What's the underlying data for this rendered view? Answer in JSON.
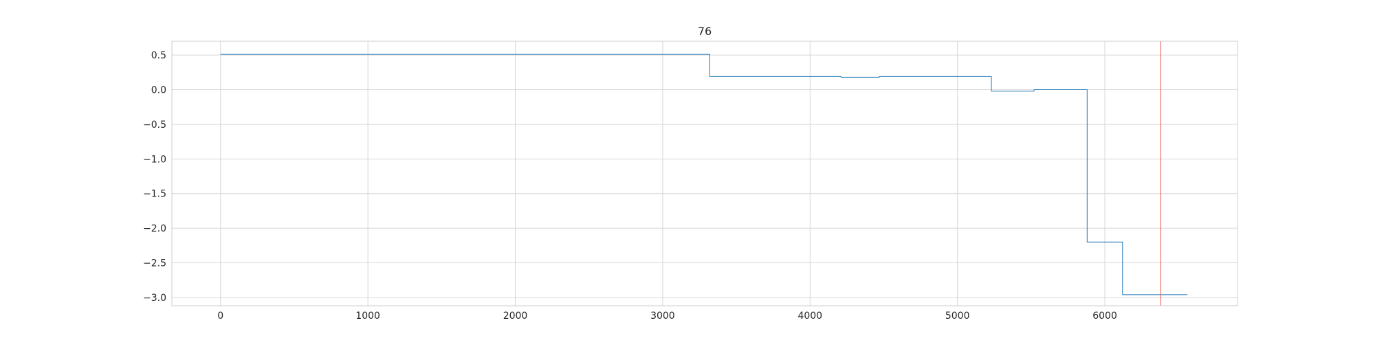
{
  "chart_data": {
    "type": "line",
    "title": "76",
    "xlabel": "",
    "ylabel": "",
    "xlim": [
      -330,
      6900
    ],
    "ylim": [
      -3.12,
      0.7
    ],
    "x_ticks": [
      0,
      1000,
      2000,
      3000,
      4000,
      5000,
      6000
    ],
    "x_tick_labels": [
      "0",
      "1000",
      "2000",
      "3000",
      "4000",
      "5000",
      "6000"
    ],
    "y_ticks": [
      0.5,
      0.0,
      -0.5,
      -1.0,
      -1.5,
      -2.0,
      -2.5,
      -3.0
    ],
    "y_tick_labels": [
      "0.5",
      "0.0",
      "−0.5",
      "−1.0",
      "−1.5",
      "−2.0",
      "−2.5",
      "−3.0"
    ],
    "grid": true,
    "series": [
      {
        "color": "#1f77b4",
        "step": true,
        "x": [
          0,
          3320,
          3320,
          4210,
          4210,
          4470,
          4470,
          5230,
          5230,
          5520,
          5520,
          5880,
          5880,
          6120,
          6120,
          6560
        ],
        "y": [
          0.51,
          0.51,
          0.19,
          0.19,
          0.18,
          0.18,
          0.19,
          0.19,
          -0.02,
          -0.02,
          0.0,
          0.0,
          -2.2,
          -2.2,
          -2.96,
          -2.96
        ]
      }
    ],
    "vlines": [
      {
        "x": 6380,
        "color": "#e8554e"
      }
    ]
  }
}
